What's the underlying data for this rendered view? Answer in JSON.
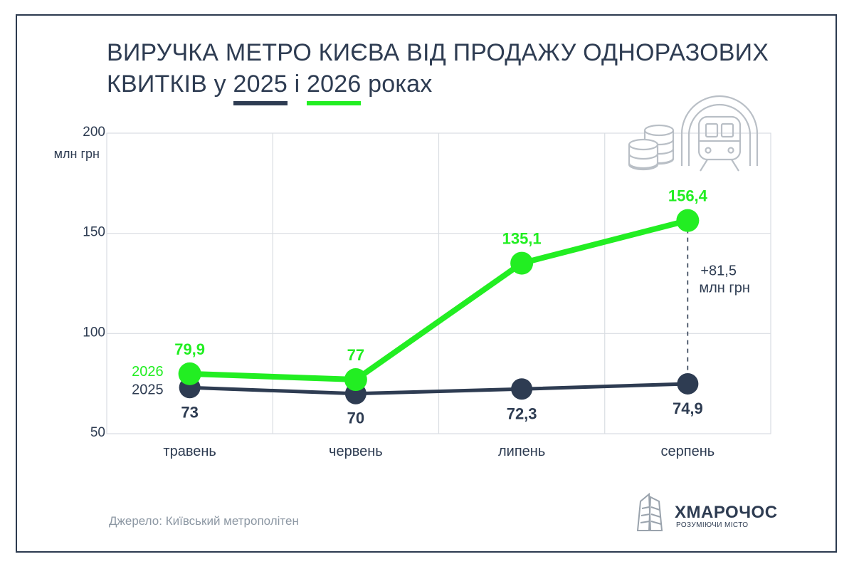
{
  "title": {
    "line1": "ВИРУЧКА МЕТРО КИЄВА ВІД ПРОДАЖУ ОДНОРАЗОВИХ",
    "line2_prefix": "КВИТКІВ у",
    "year_a": "2025",
    "conj": "і",
    "year_b": "2026",
    "suffix": "роках"
  },
  "chart_data": {
    "type": "line",
    "categories": [
      "травень",
      "червень",
      "липень",
      "серпень"
    ],
    "series": [
      {
        "name": "2025",
        "values": [
          73,
          70,
          72.3,
          74.9
        ],
        "labels": [
          "73",
          "70",
          "72,3",
          "74,9"
        ],
        "color": "#2e3c52"
      },
      {
        "name": "2026",
        "values": [
          79.9,
          77,
          135.1,
          156.4
        ],
        "labels": [
          "79,9",
          "77",
          "135,1",
          "156,4"
        ],
        "color": "#22ee22"
      }
    ],
    "ylim": [
      50,
      200
    ],
    "yticks": [
      50,
      100,
      150,
      200
    ],
    "ylabel": "млн грн",
    "grid": true,
    "annotation": {
      "line1": "+81,5",
      "line2": "млн грн"
    }
  },
  "source": "Джерело: Київський метрополітен",
  "logo": {
    "name": "ХМАРОЧОС",
    "tagline": "РОЗУМІЮЧИ МІСТО"
  },
  "colors": {
    "dark": "#2e3c52",
    "green": "#22ee22",
    "grid": "#d9dde2"
  },
  "icons": [
    "coins-icon",
    "metro-train-icon",
    "skyscraper-logo-icon"
  ]
}
